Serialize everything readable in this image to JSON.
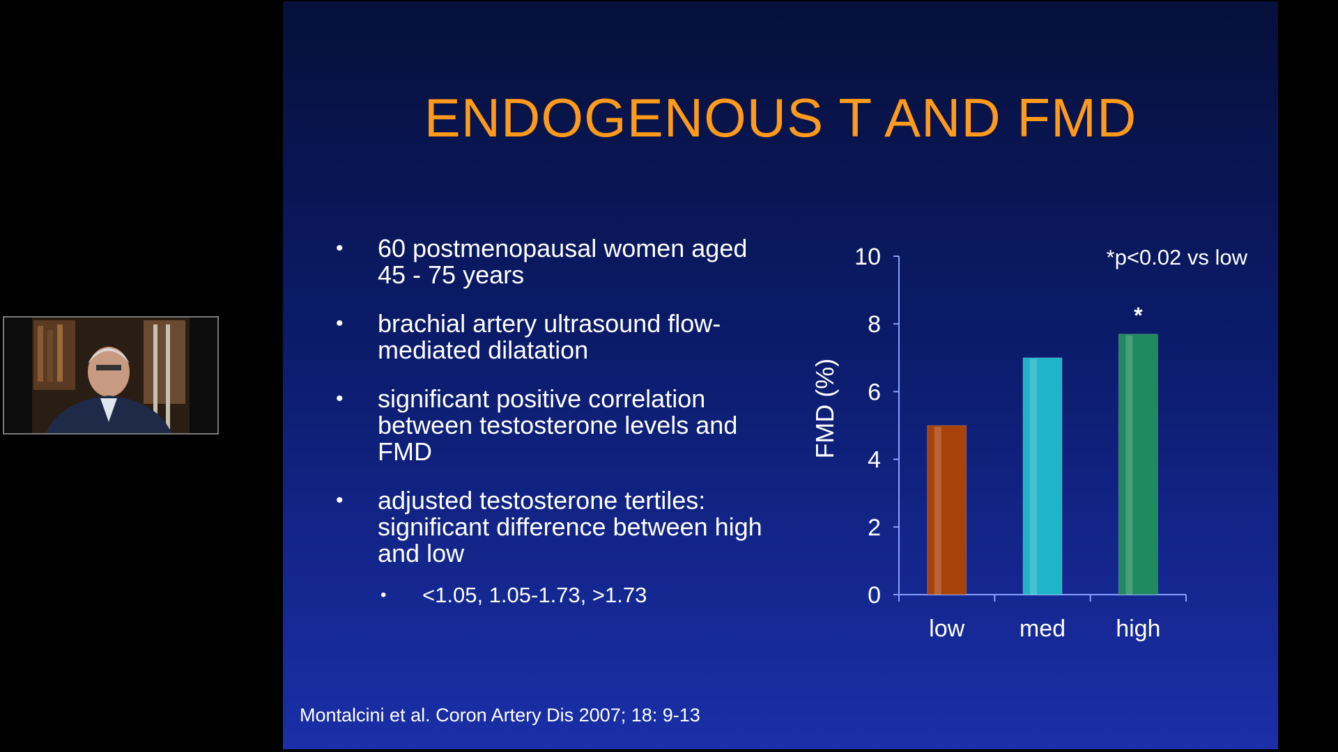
{
  "slide": {
    "title": "ENDOGENOUS T AND FMD",
    "bullets": [
      "60 postmenopausal women aged 45 - 75 years",
      "brachial artery ultrasound flow-mediated dilatation",
      "significant positive correlation between testosterone levels and FMD",
      "adjusted testosterone tertiles: significant difference between high and low"
    ],
    "sub_bullet": "<1.05, 1.05-1.73, >1.73",
    "bullet_symbol": "•",
    "citation": "Montalcini et al. Coron Artery Dis 2007; 18: 9-13"
  },
  "chart_data": {
    "type": "bar",
    "categories": [
      "low",
      "med",
      "high"
    ],
    "values": [
      5.0,
      7.0,
      7.7
    ],
    "ylabel": "FMD (%)",
    "ylim": [
      0,
      10
    ],
    "yticks": [
      0,
      2,
      4,
      6,
      8,
      10
    ],
    "annotation": "*p<0.02 vs low",
    "significance_marker": {
      "category": "high",
      "symbol": "*"
    },
    "colors": [
      "#a8420a",
      "#1fb4c8",
      "#1f8a5e"
    ]
  }
}
